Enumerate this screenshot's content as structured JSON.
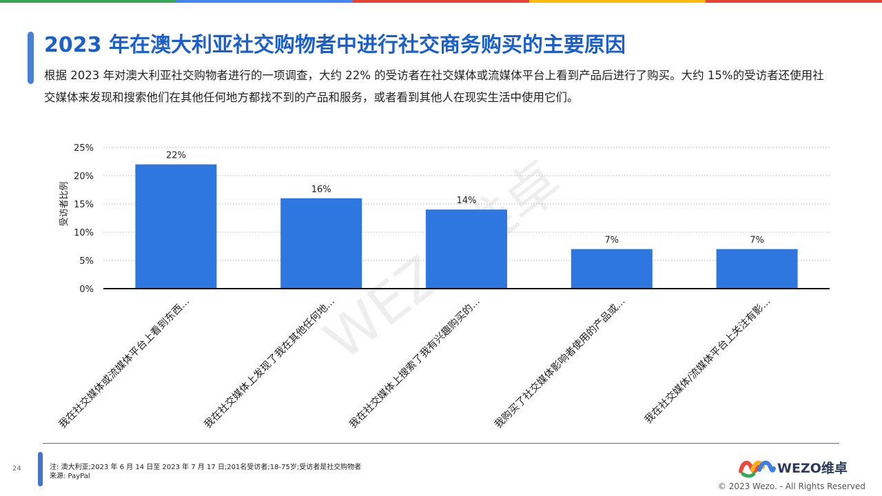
{
  "colors": {
    "brand_blue": "#1a5fcc",
    "bar": "#2f77e0",
    "top_bar": [
      "#34a853",
      "#4285f4",
      "#ea4335",
      "#fbbc05",
      "#ea4335"
    ]
  },
  "page": {
    "title": "2023 年在澳大利亚社交购物者中进行社交商务购买的主要原因",
    "subtitle": "根据 2023 年对澳大利亚社交购物者进行的一项调查，大约 22% 的受访者在社交媒体或流媒体平台上看到产品后进行了购买。大约 15%的受访者还使用社交媒体来发现和搜索他们在其他任何地方都找不到的产品和服务，或者看到其他人在现实生活中使用它们。",
    "page_number": "24",
    "note": "注:  澳大利亚;2023 年 6 月 14 日至 2023 年 7 月 17 日;201名受访者;18-75岁;受访者是社交购物者",
    "source": "来源:  PayPal",
    "logo_text": "WEZO维卓",
    "copyright": "© 2023 Wezo. - All Rights Reserved",
    "watermark": "WEZO维卓"
  },
  "chart_data": {
    "type": "bar",
    "categories": [
      "我在社交媒体或流媒体平台上看到东西...",
      "我在社交媒体上发现了我在其他任何地...",
      "我在社交媒体上搜索了我有兴趣购买的...",
      "我购买了社交媒体影响者使用的产品或...",
      "我在社交媒体/流媒体平台上关注有影..."
    ],
    "values": [
      22,
      16,
      14,
      7,
      7
    ],
    "data_labels": [
      "22%",
      "16%",
      "14%",
      "7%",
      "7%"
    ],
    "ylabel": "受访者比例",
    "ylim": [
      0,
      25
    ],
    "yticks": [
      0,
      5,
      10,
      15,
      20,
      25
    ],
    "ytick_labels": [
      "0%",
      "5%",
      "10%",
      "15%",
      "20%",
      "25%"
    ],
    "grid": true
  }
}
